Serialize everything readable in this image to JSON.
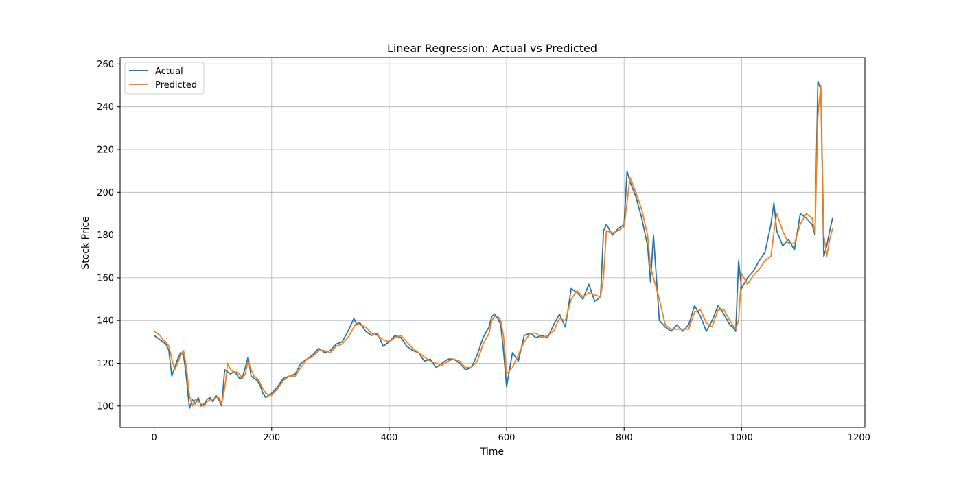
{
  "chart_data": {
    "type": "line",
    "title": "Linear Regression: Actual vs Predicted",
    "xlabel": "Time",
    "ylabel": "Stock Price",
    "xlim": [
      -58,
      1210
    ],
    "ylim": [
      90,
      263
    ],
    "xticks": [
      0,
      200,
      400,
      600,
      800,
      1000,
      1200
    ],
    "yticks": [
      100,
      120,
      140,
      160,
      180,
      200,
      220,
      240,
      260
    ],
    "grid": true,
    "legend": "top-left",
    "colors": {
      "Actual": "#1f77b4",
      "Predicted": "#ff7f0e"
    },
    "series": [
      {
        "name": "Actual",
        "x": [
          0,
          5,
          10,
          15,
          20,
          25,
          30,
          35,
          40,
          45,
          50,
          55,
          60,
          65,
          70,
          75,
          80,
          85,
          90,
          95,
          100,
          105,
          110,
          115,
          120,
          125,
          130,
          135,
          140,
          145,
          150,
          155,
          160,
          165,
          170,
          175,
          180,
          185,
          190,
          195,
          200,
          210,
          220,
          230,
          240,
          250,
          260,
          270,
          280,
          290,
          300,
          310,
          320,
          330,
          340,
          345,
          350,
          360,
          370,
          380,
          390,
          400,
          410,
          420,
          430,
          440,
          450,
          460,
          470,
          480,
          490,
          500,
          510,
          520,
          530,
          540,
          550,
          560,
          570,
          575,
          580,
          585,
          590,
          595,
          600,
          610,
          620,
          630,
          640,
          650,
          660,
          670,
          680,
          690,
          700,
          710,
          720,
          730,
          740,
          750,
          760,
          765,
          770,
          780,
          790,
          800,
          805,
          810,
          820,
          830,
          840,
          845,
          850,
          860,
          870,
          880,
          890,
          900,
          910,
          920,
          930,
          940,
          950,
          960,
          970,
          980,
          985,
          990,
          995,
          1000,
          1010,
          1020,
          1030,
          1040,
          1050,
          1055,
          1060,
          1070,
          1080,
          1090,
          1100,
          1110,
          1120,
          1125,
          1130,
          1135,
          1140,
          1145,
          1150,
          1155
        ],
        "values": [
          133,
          132,
          131,
          130,
          129,
          126,
          114,
          118,
          122,
          125,
          124,
          113,
          99,
          103,
          101,
          104,
          100,
          101,
          103,
          104,
          102,
          105,
          103,
          100,
          117,
          116,
          115,
          116,
          115,
          113,
          113,
          118,
          123,
          114,
          113,
          112,
          110,
          106,
          104,
          105,
          106,
          109,
          113,
          114,
          115,
          120,
          122,
          124,
          127,
          125,
          126,
          129,
          130,
          135,
          141,
          138,
          139,
          135,
          133,
          134,
          128,
          130,
          133,
          132,
          128,
          126,
          125,
          121,
          122,
          118,
          120,
          122,
          122,
          120,
          117,
          118,
          124,
          132,
          137,
          142,
          143,
          141,
          138,
          125,
          109,
          125,
          121,
          133,
          134,
          132,
          133,
          132,
          138,
          143,
          137,
          155,
          153,
          150,
          157,
          149,
          151,
          182,
          185,
          180,
          183,
          185,
          210,
          205,
          198,
          188,
          175,
          158,
          180,
          140,
          137,
          135,
          138,
          135,
          138,
          147,
          142,
          135,
          140,
          147,
          143,
          138,
          137,
          135,
          168,
          155,
          160,
          163,
          168,
          172,
          185,
          195,
          182,
          175,
          178,
          173,
          190,
          188,
          185,
          180,
          252,
          248,
          170,
          175,
          182,
          188
        ]
      },
      {
        "name": "Predicted",
        "x": [
          0,
          5,
          10,
          15,
          20,
          25,
          30,
          35,
          40,
          45,
          50,
          55,
          60,
          65,
          70,
          75,
          80,
          85,
          90,
          95,
          100,
          105,
          110,
          115,
          120,
          125,
          130,
          135,
          140,
          145,
          150,
          155,
          160,
          165,
          170,
          175,
          180,
          185,
          190,
          195,
          200,
          210,
          220,
          230,
          240,
          250,
          260,
          270,
          280,
          290,
          300,
          310,
          320,
          330,
          340,
          345,
          350,
          360,
          370,
          380,
          390,
          400,
          410,
          420,
          430,
          440,
          450,
          460,
          470,
          480,
          490,
          500,
          510,
          520,
          530,
          540,
          550,
          560,
          570,
          575,
          580,
          585,
          590,
          595,
          600,
          610,
          620,
          630,
          640,
          650,
          660,
          670,
          680,
          690,
          700,
          710,
          720,
          730,
          740,
          750,
          760,
          765,
          770,
          780,
          790,
          800,
          805,
          810,
          820,
          830,
          840,
          845,
          850,
          860,
          870,
          880,
          890,
          900,
          910,
          920,
          930,
          940,
          950,
          960,
          970,
          980,
          985,
          990,
          995,
          1000,
          1010,
          1020,
          1030,
          1040,
          1050,
          1055,
          1060,
          1070,
          1080,
          1090,
          1100,
          1110,
          1120,
          1125,
          1130,
          1135,
          1140,
          1145,
          1150,
          1155
        ],
        "values": [
          135,
          134,
          133,
          131,
          130,
          128,
          122,
          117,
          120,
          124,
          126,
          118,
          105,
          100,
          103,
          102,
          101,
          100,
          102,
          103,
          103,
          104,
          104,
          101,
          108,
          120,
          117,
          116,
          116,
          115,
          113,
          115,
          121,
          117,
          114,
          113,
          111,
          108,
          106,
          105,
          105,
          108,
          112,
          114,
          114,
          118,
          122,
          123,
          126,
          126,
          125,
          128,
          129,
          132,
          137,
          139,
          138,
          137,
          134,
          133,
          131,
          130,
          132,
          133,
          130,
          127,
          125,
          123,
          121,
          120,
          119,
          121,
          122,
          121,
          118,
          118,
          121,
          129,
          134,
          140,
          142,
          142,
          140,
          132,
          115,
          118,
          124,
          130,
          134,
          134,
          132,
          133,
          135,
          141,
          140,
          150,
          154,
          151,
          153,
          152,
          151,
          160,
          182,
          181,
          182,
          184,
          195,
          207,
          200,
          192,
          180,
          165,
          160,
          150,
          138,
          136,
          136,
          136,
          136,
          144,
          145,
          139,
          137,
          145,
          145,
          140,
          138,
          136,
          140,
          162,
          157,
          161,
          164,
          168,
          170,
          181,
          190,
          182,
          176,
          176,
          185,
          190,
          188,
          181,
          236,
          250,
          180,
          170,
          178,
          183
        ]
      }
    ]
  }
}
